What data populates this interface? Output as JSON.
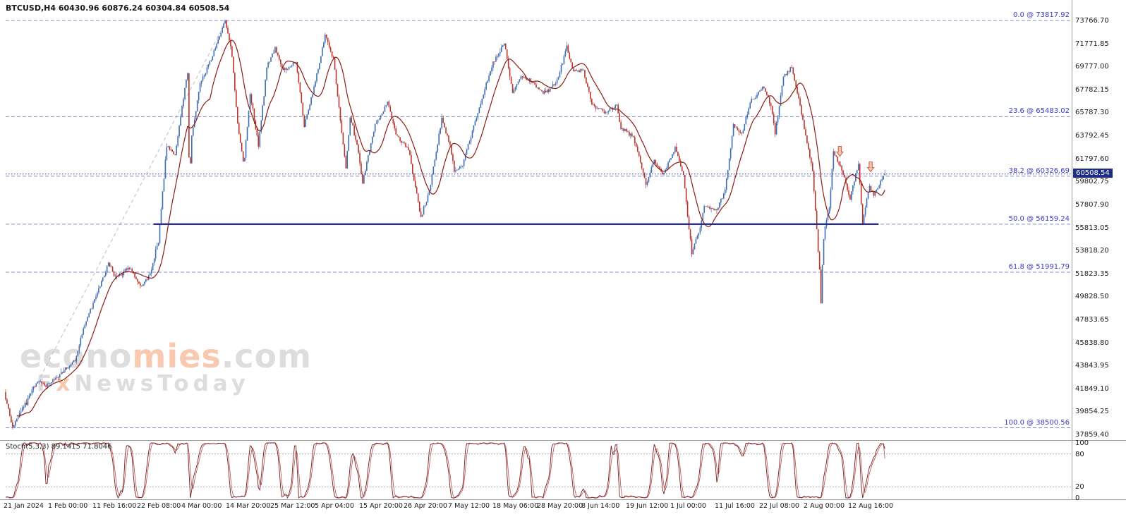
{
  "window": {
    "title": "BTCUSD,H4 60430.96 60876.24 60304.84 60508.54"
  },
  "colors": {
    "bull": "#3f6bb0",
    "bear": "#b8332c",
    "ma": "#8c1b12",
    "fib_line": "#8888cc",
    "fib_text": "#3a3ac8",
    "support": "#252a96",
    "price_line": "#2a2a8f",
    "price_tag_bg": "#1f2d86",
    "stoch_main": "#7b1b1b",
    "stoch_signal": "#b05050",
    "grid_dash": "#b5b5b5",
    "separator": "#9a9a9a",
    "trend_dash": "#bcbcca",
    "arrow_fill": "#f5c6ad",
    "arrow_stroke": "#cd5c45",
    "watermark_gray": "#c9c9c9",
    "watermark_orange": "#f4a97e"
  },
  "watermark": {
    "l1a": "econo",
    "l1b": "mies",
    "l1c": ".com",
    "l2a": "F",
    "l2b": "x",
    "l2c": "NewsToday"
  },
  "chart_data": {
    "type": "candlestick",
    "symbol": "BTCUSD",
    "timeframe": "H4",
    "ohlc": {
      "open": "60430.96",
      "high": "60876.24",
      "low": "60304.84",
      "close": "60508.54"
    },
    "price_tag": "60508.54",
    "last_close": 60508.54,
    "y_axis": {
      "labels": [
        "73766.70",
        "71771.85",
        "69777.00",
        "67782.15",
        "65787.30",
        "63792.45",
        "61797.60",
        "59802.75",
        "57807.90",
        "55813.05",
        "53818.20",
        "51823.35",
        "49828.50",
        "47833.65",
        "45838.80",
        "43843.95",
        "41849.10",
        "39854.25",
        "37859.40"
      ]
    },
    "x_axis": {
      "labels": [
        "21 Jan 2024",
        "1 Feb 00:00",
        "11 Feb 16:00",
        "22 Feb 08:00",
        "4 Mar 00:00",
        "14 Mar 20:00",
        "25 Mar 12:00",
        "5 Apr 04:00",
        "15 Apr 20:00",
        "26 Apr 20:00",
        "7 May 12:00",
        "18 May 06:00",
        "28 May 20:00",
        "8 Jun 14:00",
        "19 Jun 12:00",
        "1 Jul 00:00",
        "11 Jul 16:00",
        "22 Jul 08:00",
        "2 Aug 00:00",
        "12 Aug 16:00"
      ]
    },
    "fib_levels": [
      {
        "label": "0.0 @ 73817.92",
        "price": 73817.92
      },
      {
        "label": "23.6 @ 65483.02",
        "price": 65483.02
      },
      {
        "label": "38.2 @ 60326.69",
        "price": 60326.69
      },
      {
        "label": "50.0 @ 56159.24",
        "price": 56159.24
      },
      {
        "label": "61.8 @ 51991.79",
        "price": 51991.79
      },
      {
        "label": "100.0 @ 38500.56",
        "price": 38500.56
      }
    ],
    "fib_trend_line": {
      "day_start": 2,
      "price_start": 38500.56,
      "day_end": 53,
      "price_end": 73817.92
    },
    "support_line": {
      "price": 56159.24,
      "day_start": 35.5,
      "day_end": 209.5
    },
    "arrows": [
      {
        "day": 200.2,
        "price": 62050
      },
      {
        "day": 207.6,
        "price": 60700
      }
    ],
    "price_anchors": [
      [
        0,
        41600
      ],
      [
        2,
        38550
      ],
      [
        4,
        39900
      ],
      [
        8,
        42600
      ],
      [
        10,
        42100
      ],
      [
        13,
        43000
      ],
      [
        17,
        44400
      ],
      [
        19,
        47100
      ],
      [
        22,
        49900
      ],
      [
        25,
        52750
      ],
      [
        27,
        51500
      ],
      [
        30,
        52400
      ],
      [
        33,
        50750
      ],
      [
        35,
        51800
      ],
      [
        37,
        54800
      ],
      [
        39,
        63000
      ],
      [
        41,
        62200
      ],
      [
        43.7,
        68800
      ],
      [
        44.1,
        69200
      ],
      [
        44.4,
        59800
      ],
      [
        45,
        63700
      ],
      [
        47,
        68300
      ],
      [
        49,
        69900
      ],
      [
        51,
        71800
      ],
      [
        53,
        73817
      ],
      [
        54.5,
        71300
      ],
      [
        56,
        64800
      ],
      [
        57.5,
        61300
      ],
      [
        59,
        67400
      ],
      [
        61,
        63000
      ],
      [
        63,
        69800
      ],
      [
        65,
        71400
      ],
      [
        67,
        69500
      ],
      [
        70,
        70200
      ],
      [
        72,
        64700
      ],
      [
        74,
        67400
      ],
      [
        77,
        72600
      ],
      [
        79,
        70500
      ],
      [
        82,
        60900
      ],
      [
        83,
        65400
      ],
      [
        85,
        62400
      ],
      [
        86,
        59800
      ],
      [
        89,
        64800
      ],
      [
        92,
        66700
      ],
      [
        94,
        63900
      ],
      [
        97,
        62700
      ],
      [
        100,
        56700
      ],
      [
        102,
        59000
      ],
      [
        105,
        65300
      ],
      [
        107,
        63000
      ],
      [
        108,
        60800
      ],
      [
        110,
        61300
      ],
      [
        114,
        66300
      ],
      [
        117,
        69900
      ],
      [
        120,
        71900
      ],
      [
        122,
        67600
      ],
      [
        124,
        69100
      ],
      [
        127,
        68400
      ],
      [
        129,
        67600
      ],
      [
        131,
        67800
      ],
      [
        133,
        69000
      ],
      [
        135,
        71600
      ],
      [
        136.5,
        69400
      ],
      [
        139,
        69500
      ],
      [
        141,
        66500
      ],
      [
        144,
        65900
      ],
      [
        147,
        66400
      ],
      [
        148,
        64400
      ],
      [
        151,
        63800
      ],
      [
        154,
        59600
      ],
      [
        156,
        61700
      ],
      [
        158,
        60400
      ],
      [
        161,
        62800
      ],
      [
        163,
        60300
      ],
      [
        165,
        53600
      ],
      [
        167,
        55900
      ],
      [
        168,
        57800
      ],
      [
        171,
        57400
      ],
      [
        173,
        59100
      ],
      [
        175,
        64700
      ],
      [
        177,
        64100
      ],
      [
        179,
        66600
      ],
      [
        182,
        68100
      ],
      [
        184,
        66500
      ],
      [
        185,
        64100
      ],
      [
        187,
        68900
      ],
      [
        189,
        69800
      ],
      [
        191,
        66500
      ],
      [
        192,
        64400
      ],
      [
        194,
        60800
      ],
      [
        195.7,
        52000
      ],
      [
        196,
        49300
      ],
      [
        196.5,
        54200
      ],
      [
        197,
        56100
      ],
      [
        198,
        57600
      ],
      [
        199,
        62500
      ],
      [
        201,
        60900
      ],
      [
        203,
        58400
      ],
      [
        205,
        61500
      ],
      [
        206,
        56300
      ],
      [
        207.5,
        59400
      ],
      [
        209,
        58800
      ],
      [
        210,
        59600
      ],
      [
        211,
        60470
      ]
    ],
    "stochastic": {
      "display": "Stoch(5,3,3) 89.1415 71.8046",
      "name": "Stoch(5,3,3)",
      "values": [
        "89.1415",
        "71.8046"
      ],
      "axis_labels": [
        "100",
        "80",
        "20",
        "0"
      ],
      "upper_level": 80,
      "lower_level": 20
    }
  }
}
